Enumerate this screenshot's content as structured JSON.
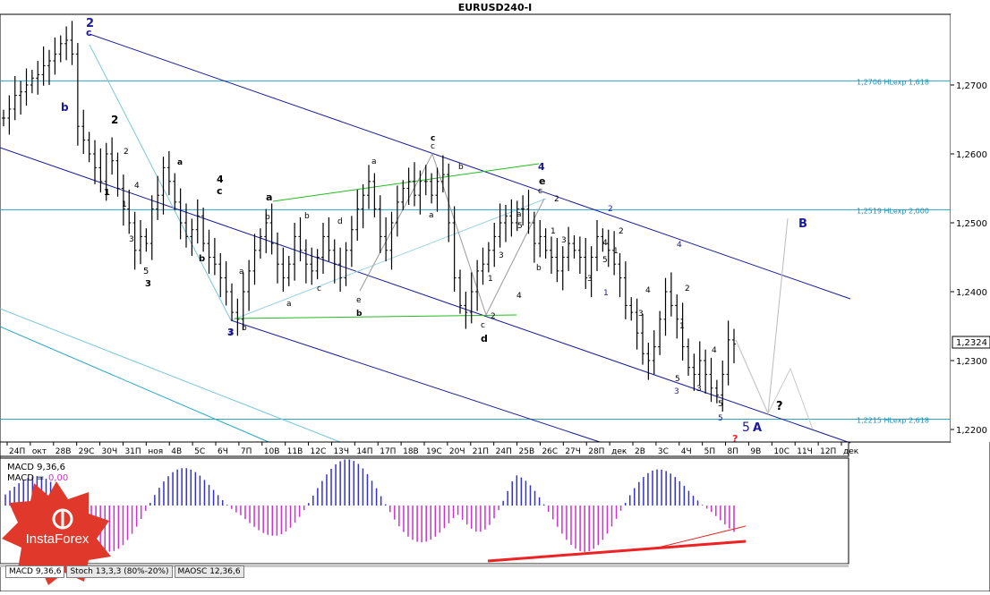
{
  "window": {
    "title": "EURUSD240-I"
  },
  "price_axis": {
    "labels": [
      "1,2700",
      "1,2600",
      "1,2500",
      "1,2400",
      "1,2300",
      "1,2200"
    ],
    "current_price": "1,2324"
  },
  "levels": [
    {
      "label": "1,2706 HLexp 1,618",
      "value": 1.2706
    },
    {
      "label": "1,2519 HLexp 2,000",
      "value": 1.2519
    },
    {
      "label": "1,2215 HLexp 2,618",
      "value": 1.2215
    }
  ],
  "time_axis": {
    "labels": [
      "24П",
      "окт",
      "28В",
      "29С",
      "30Ч",
      "31П",
      "ноя",
      "4В",
      "5С",
      "6Ч",
      "7П",
      "10В",
      "11В",
      "12С",
      "13Ч",
      "14П",
      "17П",
      "18В",
      "19С",
      "20Ч",
      "21П",
      "24П",
      "25В",
      "26С",
      "27Ч",
      "28П",
      "дек",
      "2В",
      "3С",
      "4Ч",
      "5П",
      "8П",
      "9В",
      "10С",
      "11Ч",
      "12П",
      "дек"
    ]
  },
  "indicator": {
    "macd_label": "MACD 9,36,6",
    "macd_value_label": "MACD = ",
    "macd_value": "0,00"
  },
  "tabs": [
    "MACD 9,36,6",
    "Stoch 13,3,3 (80%-20%)",
    "MAOSC 12,36,6"
  ],
  "logo": {
    "text": "InstaForex"
  },
  "colors": {
    "level_line": "#2aa6c7",
    "channel": "#1a1a9a",
    "green": "#22bb22",
    "macd_hist": "#cc33cc",
    "macd_hist_pos": "#3333cc",
    "divergence": "#ee2222",
    "logo": "#e0392b"
  },
  "chart_data": {
    "type": "ohlc",
    "title": "EURUSD240-I",
    "symbol": "EURUSD",
    "timeframe": "H4",
    "ylim": [
      1.2185,
      1.2785
    ],
    "y_ticks": [
      1.27,
      1.26,
      1.25,
      1.24,
      1.23,
      1.22
    ],
    "last_price": 1.2324,
    "close_path": [
      1.2652,
      1.2665,
      1.2685,
      1.269,
      1.27,
      1.271,
      1.2715,
      1.2728,
      1.2735,
      1.2745,
      1.276,
      1.2765,
      1.2745,
      1.264,
      1.262,
      1.26,
      1.258,
      1.256,
      1.26,
      1.259,
      1.255,
      1.252,
      1.25,
      1.246,
      1.248,
      1.247,
      1.252,
      1.254,
      1.258,
      1.256,
      1.253,
      1.25,
      1.248,
      1.249,
      1.251,
      1.247,
      1.245,
      1.244,
      1.242,
      1.24,
      1.237,
      1.236,
      1.24,
      1.243,
      1.246,
      1.248,
      1.25,
      1.247,
      1.244,
      1.242,
      1.244,
      1.248,
      1.246,
      1.244,
      1.243,
      1.245,
      1.248,
      1.246,
      1.244,
      1.242,
      1.246,
      1.249,
      1.252,
      1.254,
      1.256,
      1.252,
      1.248,
      1.246,
      1.25,
      1.253,
      1.255,
      1.256,
      1.254,
      1.256,
      1.256,
      1.254,
      1.256,
      1.257,
      1.25,
      1.242,
      1.238,
      1.237,
      1.24,
      1.243,
      1.244,
      1.246,
      1.248,
      1.25,
      1.251,
      1.25,
      1.252,
      1.252,
      1.25,
      1.247,
      1.248,
      1.246,
      1.245,
      1.243,
      1.245,
      1.247,
      1.246,
      1.245,
      1.242,
      1.245,
      1.248,
      1.247,
      1.246,
      1.244,
      1.242,
      1.238,
      1.237,
      1.234,
      1.231,
      1.23,
      1.232,
      1.236,
      1.24,
      1.238,
      1.236,
      1.232,
      1.229,
      1.228,
      1.23,
      1.228,
      1.226,
      1.225,
      1.228,
      1.233,
      1.2324
    ],
    "channels": [
      {
        "name": "upper",
        "from": [
          0,
          1.2765
        ],
        "to": [
          1.0,
          1.2385
        ]
      },
      {
        "name": "lower",
        "from": [
          0,
          1.261
        ],
        "to": [
          1.0,
          1.2175
        ]
      }
    ],
    "annotations": [
      {
        "text": "2",
        "color": "#1a1a9a"
      },
      {
        "text": "c",
        "color": "#1a1a9a"
      },
      {
        "text": "b",
        "color": "#1a1a9a"
      },
      {
        "text": "2",
        "color": "#000"
      },
      {
        "text": "1",
        "color": "#000"
      },
      {
        "text": "3",
        "color": "#000"
      },
      {
        "text": "4",
        "color": "#000"
      },
      {
        "text": "5",
        "color": "#000"
      },
      {
        "text": "a",
        "color": "#000"
      },
      {
        "text": "b",
        "color": "#000"
      },
      {
        "text": "c",
        "color": "#000"
      },
      {
        "text": "d",
        "color": "#000"
      },
      {
        "text": "e",
        "color": "#000"
      },
      {
        "text": "3",
        "color": "#1a1a9a"
      },
      {
        "text": "4",
        "color": "#1a1a9a"
      },
      {
        "text": "5",
        "color": "#1a1a9a"
      },
      {
        "text": "B",
        "color": "#1a1a9a"
      },
      {
        "text": "A",
        "color": "#1a1a9a"
      },
      {
        "text": "?",
        "color": "#000"
      },
      {
        "text": "?",
        "color": "#ee2222"
      }
    ],
    "indicator": {
      "name": "MACD 9,36,6",
      "value": 0.0,
      "histogram_shape": "oscillating"
    }
  }
}
